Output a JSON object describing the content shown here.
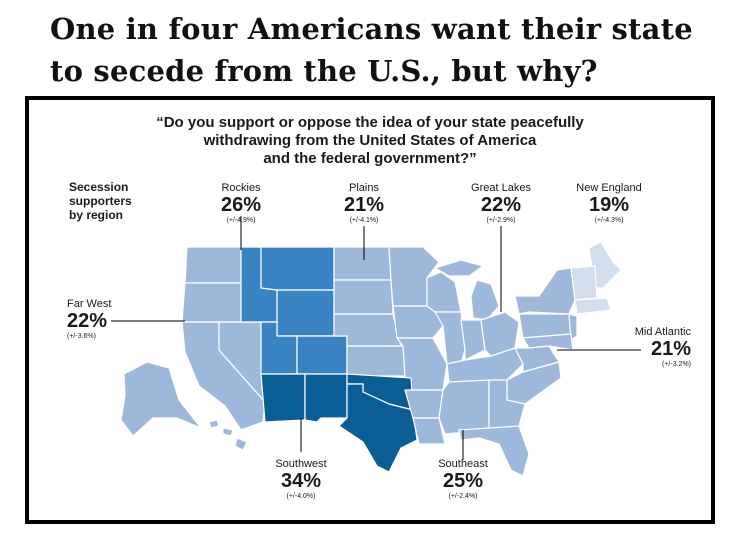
{
  "headline": {
    "line1": "One in four Americans want their state",
    "line2": "to secede from the U.S., but why?"
  },
  "question": {
    "line1": "“Do you support or oppose the idea of your state peacefully",
    "line2": "withdrawing from the United States of America",
    "line3": "and the federal government?”"
  },
  "legend": {
    "line1": "Secession",
    "line2": "supporters",
    "line3": "by region"
  },
  "colors": {
    "light": "#9eb8db",
    "pale": "#d2ddee",
    "mid": "#3a83c2",
    "dark": "#0b5d95",
    "border": "#ffffff",
    "leader_line": "#000000"
  },
  "regions": {
    "rockies": {
      "name": "Rockies",
      "value": "26%",
      "moe": "(+/-4.9%)",
      "pct": 26
    },
    "plains": {
      "name": "Plains",
      "value": "21%",
      "moe": "(+/-4.1%)",
      "pct": 21
    },
    "great_lakes": {
      "name": "Great Lakes",
      "value": "22%",
      "moe": "(+/-2.9%)",
      "pct": 22
    },
    "new_england": {
      "name": "New England",
      "value": "19%",
      "moe": "(+/-4.3%)",
      "pct": 19
    },
    "far_west": {
      "name": "Far West",
      "value": "22%",
      "moe": "(+/-3.6%)",
      "pct": 22
    },
    "mid_atlantic": {
      "name": "Mid Atlantic",
      "value": "21%",
      "moe": "(+/-3.2%)",
      "pct": 21
    },
    "southwest": {
      "name": "Southwest",
      "value": "34%",
      "moe": "(+/-4.0%)",
      "pct": 34
    },
    "southeast": {
      "name": "Southeast",
      "value": "25%",
      "moe": "(+/-2.4%)",
      "pct": 25
    }
  }
}
